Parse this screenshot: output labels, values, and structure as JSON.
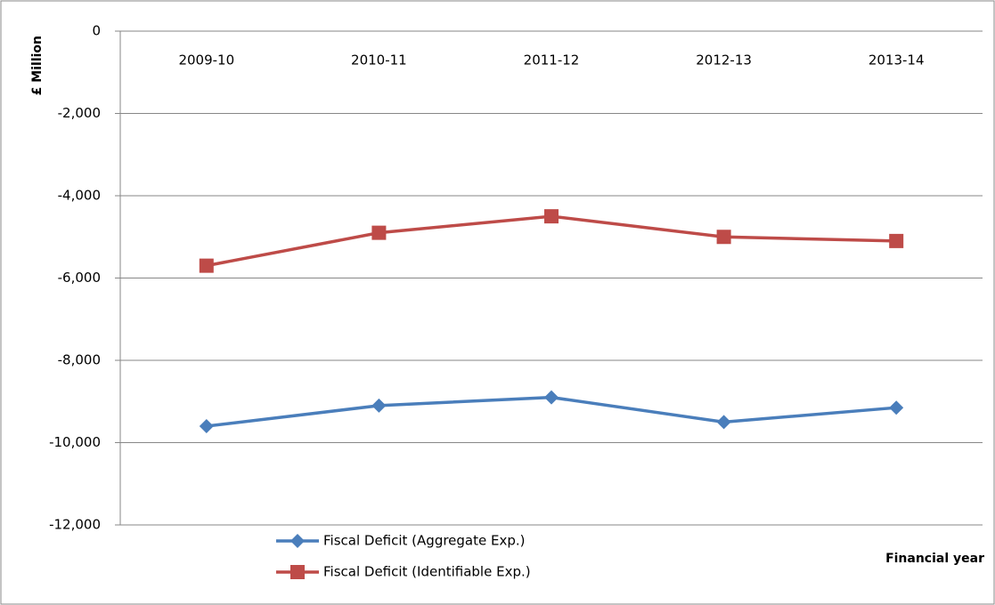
{
  "chart_data": {
    "type": "line",
    "y_label": "£ Million",
    "x_label": "Financial year",
    "categories": [
      "2009-10",
      "2010-11",
      "2011-12",
      "2012-13",
      "2013-14"
    ],
    "series": [
      {
        "name": "Fiscal Deficit (Aggregate Exp.)",
        "color": "#4a7ebb",
        "marker": "diamond",
        "values": [
          -9600,
          -9100,
          -8900,
          -9500,
          -9150
        ]
      },
      {
        "name": "Fiscal Deficit (Identifiable Exp.)",
        "color": "#be4b48",
        "marker": "square",
        "values": [
          -5700,
          -4900,
          -4500,
          -5000,
          -5100
        ]
      }
    ],
    "ylim": [
      -12000,
      0
    ],
    "yticks": [
      0,
      {
        "value": -2000,
        "label": "-2,000"
      },
      {
        "value": -4000,
        "label": "-4,000"
      },
      {
        "value": -6000,
        "label": "-6,000"
      },
      {
        "value": -8000,
        "label": "-8,000"
      },
      {
        "value": -10000,
        "label": "-10,000"
      },
      {
        "value": -12000,
        "label": "-12,000"
      }
    ],
    "grid": true
  }
}
